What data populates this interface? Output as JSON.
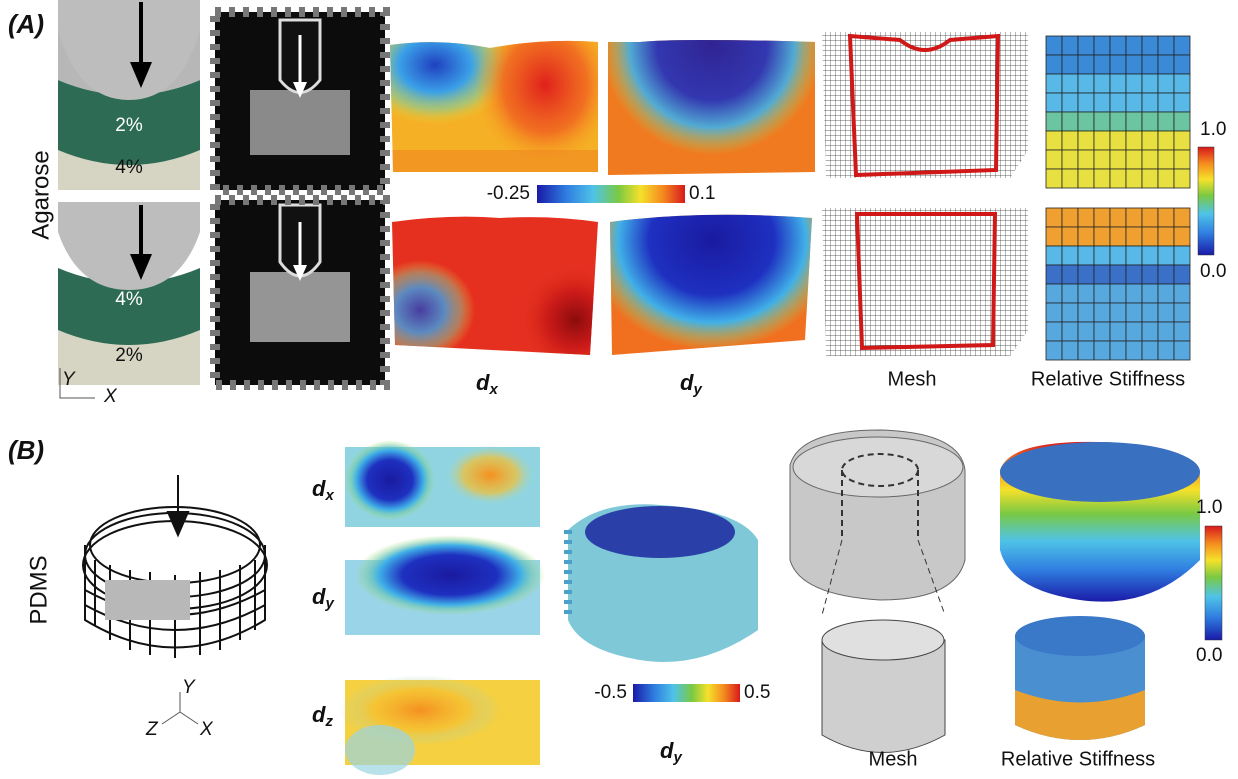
{
  "panel_a": {
    "label": "(A)",
    "material": "Agarose",
    "sample_top": {
      "upper_layer": "2%",
      "lower_layer": "4%"
    },
    "sample_bottom": {
      "upper_layer": "4%",
      "lower_layer": "2%"
    },
    "axis_y": "Y",
    "axis_x": "X",
    "colorbar": {
      "min": "-0.25",
      "max": "0.1"
    },
    "labels": {
      "dx": {
        "symbol": "d",
        "subscript": "x"
      },
      "dy": {
        "symbol": "d",
        "subscript": "y"
      },
      "mesh": "Mesh",
      "stiffness": "Relative Stiffness"
    },
    "stiffness_colorbar": {
      "max": "1.0",
      "min": "0.0"
    }
  },
  "panel_b": {
    "label": "(B)",
    "material": "PDMS",
    "maps": [
      {
        "symbol": "d",
        "subscript": "x"
      },
      {
        "symbol": "d",
        "subscript": "y"
      },
      {
        "symbol": "d",
        "subscript": "z"
      }
    ],
    "colorbar": {
      "min": "-0.5",
      "max": "0.5"
    },
    "volume_label": {
      "symbol": "d",
      "subscript": "y"
    },
    "labels": {
      "mesh": "Mesh",
      "stiffness": "Relative Stiffness"
    },
    "stiffness_colorbar": {
      "max": "1.0",
      "min": "0.0"
    },
    "axes": {
      "y": "Y",
      "z": "Z",
      "x": "X"
    }
  }
}
